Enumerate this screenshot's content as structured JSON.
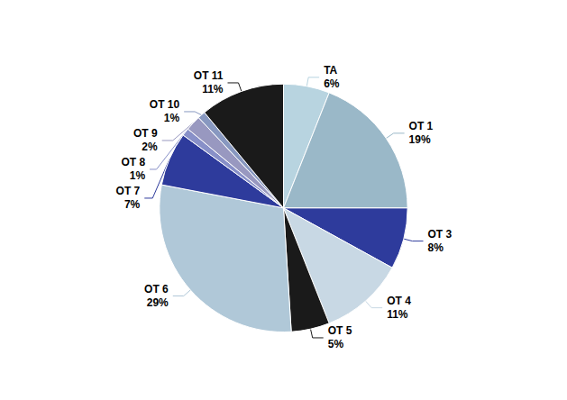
{
  "chart_data": {
    "type": "pie",
    "categories": [
      "TA",
      "OT 1",
      "OT 3",
      "OT 4",
      "OT 5",
      "OT 6",
      "OT 7",
      "OT 8",
      "OT 9",
      "OT 10",
      "OT 11"
    ],
    "values": [
      6,
      19,
      8,
      11,
      5,
      29,
      7,
      1,
      2,
      1,
      11
    ],
    "value_labels": [
      "6%",
      "19%",
      "8%",
      "11%",
      "5%",
      "29%",
      "7%",
      "1%",
      "2%",
      "1%",
      "11%"
    ],
    "colors": [
      "#b8d4e0",
      "#9ab8c8",
      "#2e3b9c",
      "#c8d8e4",
      "#1a1a1a",
      "#b0c8d8",
      "#2e3b9c",
      "#8890c8",
      "#9898c0",
      "#8898c0",
      "#1a1a1a"
    ],
    "data_labels": true
  }
}
